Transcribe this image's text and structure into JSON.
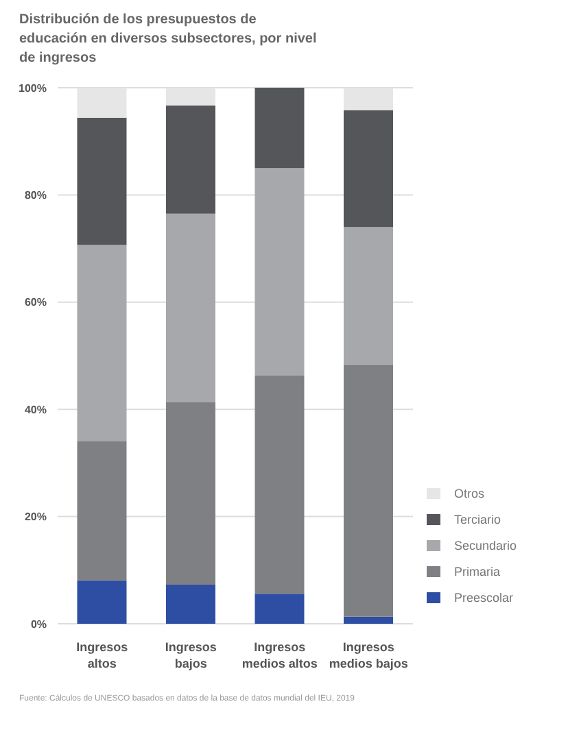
{
  "chart_data": {
    "type": "bar",
    "title": "Distribución de los presupuestos de educación en diversos subsectores, por nivel de ingresos",
    "categories": [
      "Ingresos altos",
      "Ingresos bajos",
      "Ingresos medios altos",
      "Ingresos medios bajos"
    ],
    "stacked": true,
    "series": [
      {
        "name": "Preescolar",
        "color": "#2d4ea3",
        "values": [
          8.1,
          7.3,
          5.6,
          1.3
        ]
      },
      {
        "name": "Primaria",
        "color": "#7f8084",
        "values": [
          26,
          34,
          40.7,
          47.1
        ]
      },
      {
        "name": "Secundario",
        "color": "#a7a8ab",
        "values": [
          36.6,
          35.2,
          38.7,
          25.6
        ]
      },
      {
        "name": "Terciario",
        "color": "#555659",
        "values": [
          23.7,
          20.2,
          15,
          21.8
        ]
      },
      {
        "name": "Otros",
        "color": "#e6e6e6",
        "values": [
          5.6,
          3.3,
          0,
          4.2
        ]
      }
    ],
    "ylim": [
      0,
      100
    ],
    "yticks": [
      {
        "value": 0,
        "label": "0%"
      },
      {
        "value": 20,
        "label": "20%"
      },
      {
        "value": 40,
        "label": "40%"
      },
      {
        "value": 60,
        "label": "60%"
      },
      {
        "value": 80,
        "label": "80%"
      },
      {
        "value": 100,
        "label": "100%"
      }
    ],
    "grid": "y",
    "legend": "bottom right",
    "annotations": [
      "Fuente: Cálculos de UNESCO basados en datos de la base de datos mundial del IEU, 2019"
    ]
  }
}
